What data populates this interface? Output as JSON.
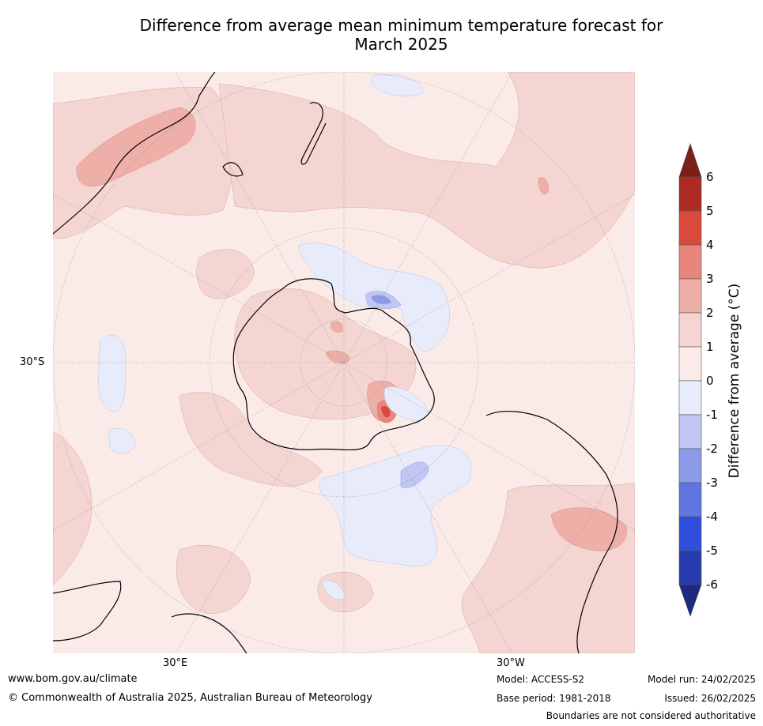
{
  "title_line1": "Difference from average mean minimum temperature forecast for",
  "title_line2": "March 2025",
  "map_labels": {
    "lat": "30°S",
    "lon_left": "30°E",
    "lon_right": "30°W"
  },
  "colorbar": {
    "title": "Difference from average (",
    "title_unit": "°C)",
    "ticks": [
      "6",
      "5",
      "4",
      "3",
      "2",
      "1",
      "0",
      "-1",
      "-2",
      "-3",
      "-4",
      "-5",
      "-6"
    ],
    "colors": {
      "over": "#7a1f1a",
      "c5_6": "#ad2a22",
      "c4_5": "#d94a3d",
      "c3_4": "#e8857c",
      "c2_3": "#edafa8",
      "c1_2": "#f5d5d1",
      "c0_1": "#fbebe8",
      "cm1_0": "#e8ebfa",
      "cm2_m1": "#bfc7f2",
      "cm3_m2": "#8c9be8",
      "cm4_m3": "#5f76e0",
      "cm5_m4": "#2f4ede",
      "cm6_m5": "#263cb0",
      "under": "#1d2a7d"
    }
  },
  "footer": {
    "url": "www.bom.gov.au/climate",
    "copyright": "© Commonwealth of Australia 2025, Australian Bureau of Meteorology",
    "model": "Model: ACCESS-S2",
    "base_period": "Base period: 1981-2018",
    "model_run": "Model run: 24/02/2025",
    "issued": "Issued: 26/02/2025",
    "disclaimer": "Boundaries are not considered authoritative"
  }
}
